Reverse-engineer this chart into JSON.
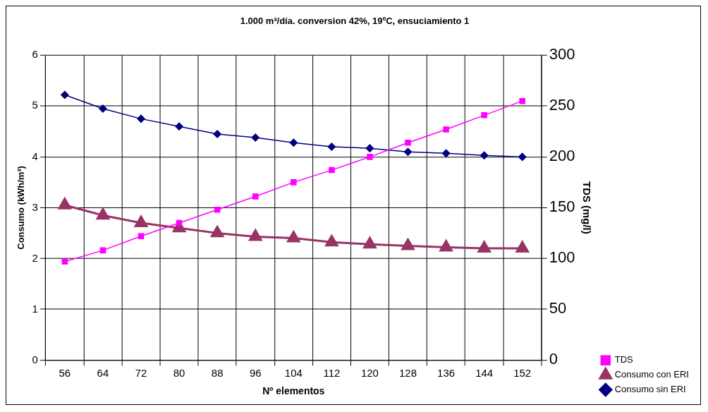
{
  "chart_data": {
    "type": "line",
    "title": "1.000 m³/día. conversion 42%, 19ºC, ensuciamiento 1",
    "xlabel": "Nº elementos",
    "ylabel": "Consumo (kWh/m³)",
    "y2label": "TDS (mg/l)",
    "categories": [
      "56",
      "64",
      "72",
      "80",
      "88",
      "96",
      "104",
      "112",
      "120",
      "128",
      "136",
      "144",
      "152"
    ],
    "series": [
      {
        "name": "Consumo sin ERI",
        "color": "#000080",
        "marker": "diamond",
        "values": [
          5.22,
          4.95,
          4.75,
          4.6,
          4.45,
          4.38,
          4.28,
          4.2,
          4.17,
          4.1,
          4.07,
          4.03,
          4.0
        ]
      },
      {
        "name": "Consumo con ERI",
        "color": "#993366",
        "marker": "triangle",
        "values": [
          3.05,
          2.85,
          2.7,
          2.6,
          2.5,
          2.43,
          2.4,
          2.32,
          2.28,
          2.25,
          2.22,
          2.2,
          2.2
        ]
      },
      {
        "name": "TDS",
        "color": "#ff00ff",
        "marker": "square",
        "axis": "y2",
        "values": [
          97,
          108,
          122,
          135,
          148,
          161,
          175,
          187,
          200,
          214,
          227,
          241,
          255
        ]
      }
    ],
    "ylim": [
      0,
      6
    ],
    "yticks": [
      0,
      1,
      2,
      3,
      4,
      5,
      6
    ],
    "y2lim": [
      0,
      300
    ],
    "y2ticks": [
      0,
      50,
      100,
      150,
      200,
      250,
      300
    ],
    "grid": true,
    "legend": "bottom right"
  }
}
